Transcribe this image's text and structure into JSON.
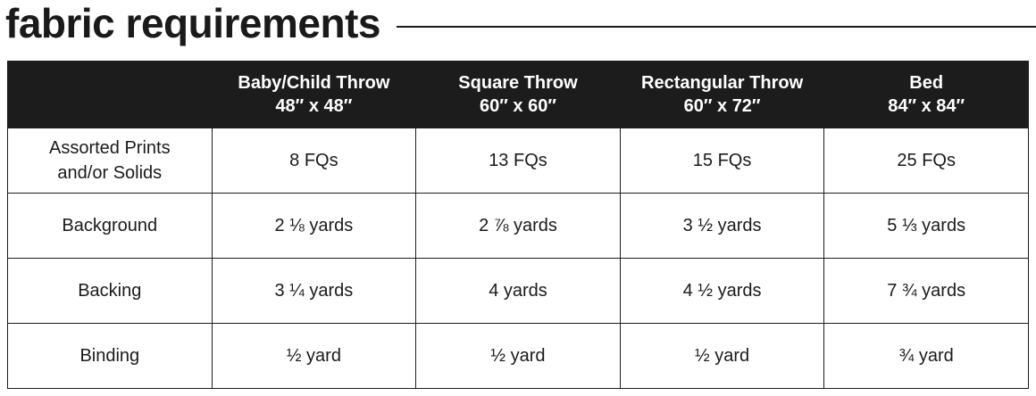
{
  "header": {
    "title": "fabric requirements"
  },
  "table": {
    "columns": [
      {
        "name": "Baby/Child Throw",
        "size": "48″ x 48″"
      },
      {
        "name": "Square Throw",
        "size": "60″ x 60″"
      },
      {
        "name": "Rectangular Throw",
        "size": "60″ x 72″"
      },
      {
        "name": "Bed",
        "size": "84″ x 84″"
      }
    ],
    "rows": [
      [
        "Assorted Prints and/or Solids",
        "8 FQs",
        "13 FQs",
        "15 FQs",
        "25 FQs"
      ],
      [
        "Background",
        "2 ⅛ yards",
        "2 ⅞ yards",
        "3 ½ yards",
        "5 ⅓ yards"
      ],
      [
        "Backing",
        "3 ¼ yards",
        "4 yards",
        "4 ½ yards",
        "7 ¾ yards"
      ],
      [
        "Binding",
        "½ yard",
        "½ yard",
        "½ yard",
        "¾ yard"
      ]
    ]
  }
}
